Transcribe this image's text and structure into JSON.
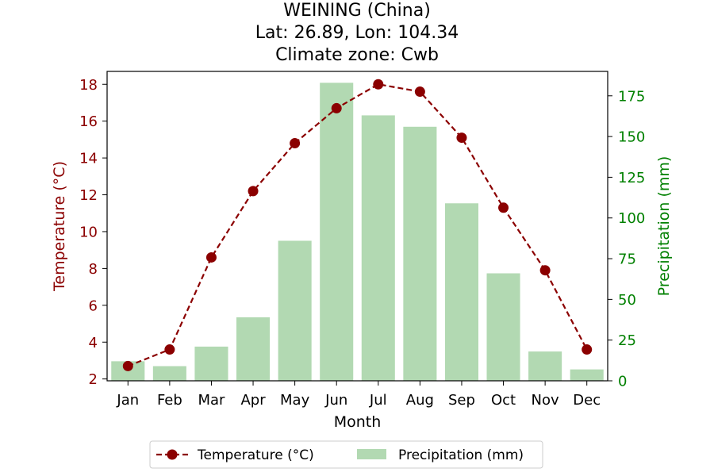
{
  "title_lines": [
    "WEINING (China)",
    "Lat: 26.89, Lon: 104.34",
    "Climate zone: Cwb"
  ],
  "colors": {
    "temperature": "#8b0000",
    "precipitation_bar": "#b2d9b2",
    "precipitation_axis": "#008000",
    "axis": "#000000"
  },
  "chart_data": {
    "type": "bar+line",
    "categories": [
      "Jan",
      "Feb",
      "Mar",
      "Apr",
      "May",
      "Jun",
      "Jul",
      "Aug",
      "Sep",
      "Oct",
      "Nov",
      "Dec"
    ],
    "series": [
      {
        "name": "Temperature (°C)",
        "type": "line",
        "axis": "left",
        "style": "dashed with circle markers",
        "values": [
          2.7,
          3.6,
          8.6,
          12.2,
          14.8,
          16.7,
          18.0,
          17.6,
          15.1,
          11.3,
          7.9,
          3.6
        ]
      },
      {
        "name": "Precipitation (mm)",
        "type": "bar",
        "axis": "right",
        "values": [
          12,
          9,
          21,
          39,
          86,
          183,
          163,
          156,
          109,
          66,
          18,
          7
        ]
      }
    ],
    "xlabel": "Month",
    "ylabel_left": "Temperature (°C)",
    "ylabel_right": "Precipitation (mm)",
    "ylim_left": [
      1.9,
      18.7
    ],
    "ylim_right": [
      0,
      190
    ],
    "yticks_left": [
      2,
      4,
      6,
      8,
      10,
      12,
      14,
      16,
      18
    ],
    "yticks_right": [
      0,
      25,
      50,
      75,
      100,
      125,
      150,
      175
    ],
    "grid": false,
    "legend_position": "bottom-center"
  }
}
